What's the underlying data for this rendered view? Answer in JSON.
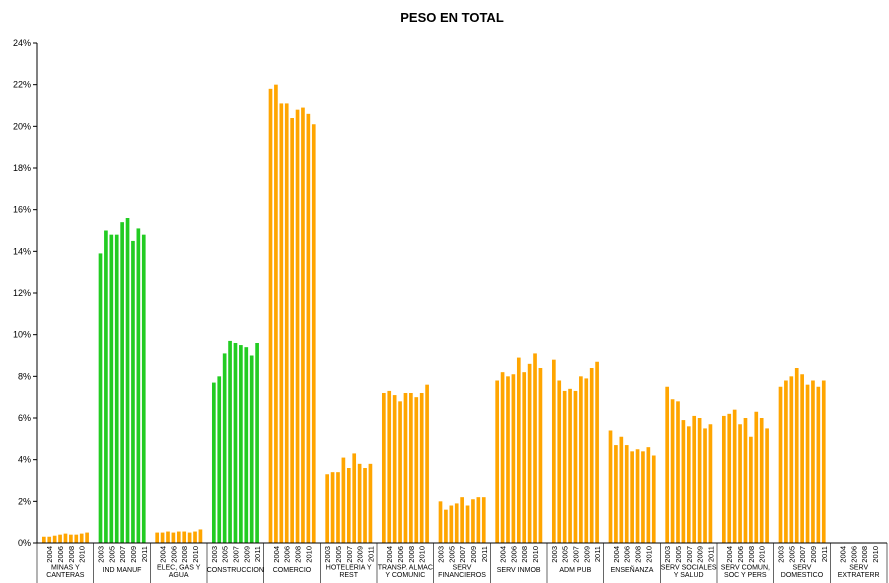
{
  "chart_data": {
    "type": "bar",
    "title": "PESO EN TOTAL",
    "ylim": [
      0,
      24
    ],
    "yticks": [
      {
        "value": 0,
        "label": "0%"
      },
      {
        "value": 2,
        "label": "2%"
      },
      {
        "value": 4,
        "label": "4%"
      },
      {
        "value": 6,
        "label": "6%"
      },
      {
        "value": 8,
        "label": "8%"
      },
      {
        "value": 10,
        "label": "10%"
      },
      {
        "value": 12,
        "label": "12%"
      },
      {
        "value": 14,
        "label": "14%"
      },
      {
        "value": 16,
        "label": "16%"
      },
      {
        "value": 18,
        "label": "18%"
      },
      {
        "value": 20,
        "label": "20%"
      },
      {
        "value": 22,
        "label": "22%"
      },
      {
        "value": 24,
        "label": "24%"
      }
    ],
    "groups": [
      {
        "label": [
          "MINAS Y",
          "CANTERAS"
        ],
        "color": "#ffa500",
        "years": [
          null,
          "2004",
          null,
          "2006",
          null,
          "2008",
          null,
          "2010",
          null
        ],
        "values": [
          0.3,
          0.3,
          0.35,
          0.4,
          0.45,
          0.4,
          0.4,
          0.45,
          0.5
        ]
      },
      {
        "label": [
          "IND MANUF"
        ],
        "color": "#22cc22",
        "years": [
          "2003",
          null,
          "2005",
          null,
          "2007",
          null,
          "2009",
          null,
          "2011"
        ],
        "values": [
          13.9,
          15.0,
          14.8,
          14.8,
          15.4,
          15.6,
          14.5,
          15.1,
          14.8
        ]
      },
      {
        "label": [
          "ELEC, GAS Y",
          "AGUA"
        ],
        "color": "#ffa500",
        "years": [
          null,
          "2004",
          null,
          "2006",
          null,
          "2008",
          null,
          "2010",
          null
        ],
        "values": [
          0.5,
          0.5,
          0.55,
          0.5,
          0.55,
          0.55,
          0.5,
          0.55,
          0.65
        ]
      },
      {
        "label": [
          "CONSTRUCCION"
        ],
        "color": "#22cc22",
        "years": [
          "2003",
          null,
          "2005",
          null,
          "2007",
          null,
          "2009",
          null,
          "2011"
        ],
        "values": [
          7.7,
          8.0,
          9.1,
          9.7,
          9.6,
          9.5,
          9.4,
          9.0,
          9.6
        ]
      },
      {
        "label": [
          "COMERCIO"
        ],
        "color": "#ffa500",
        "years": [
          null,
          "2004",
          null,
          "2006",
          null,
          "2008",
          null,
          "2010",
          null
        ],
        "values": [
          21.8,
          22.0,
          21.1,
          21.1,
          20.4,
          20.8,
          20.9,
          20.6,
          20.1
        ]
      },
      {
        "label": [
          "HOTELERIA Y",
          "REST"
        ],
        "color": "#ffa500",
        "years": [
          "2003",
          null,
          "2005",
          null,
          "2007",
          null,
          "2009",
          null,
          "2011"
        ],
        "values": [
          3.3,
          3.4,
          3.4,
          4.1,
          3.6,
          4.3,
          3.8,
          3.6,
          3.8
        ]
      },
      {
        "label": [
          "TRANSP. ALMAC",
          "Y COMUNIC"
        ],
        "color": "#ffa500",
        "years": [
          null,
          "2004",
          null,
          "2006",
          null,
          "2008",
          null,
          "2010",
          null
        ],
        "values": [
          7.2,
          7.3,
          7.1,
          6.8,
          7.2,
          7.2,
          7.0,
          7.2,
          7.6
        ]
      },
      {
        "label": [
          "SERV",
          "FINANCIEROS"
        ],
        "color": "#ffa500",
        "years": [
          "2003",
          null,
          "2005",
          null,
          "2007",
          null,
          "2009",
          null,
          "2011"
        ],
        "values": [
          2.0,
          1.6,
          1.8,
          1.9,
          2.2,
          1.8,
          2.1,
          2.2,
          2.2
        ]
      },
      {
        "label": [
          "SERV INMOB"
        ],
        "color": "#ffa500",
        "years": [
          null,
          "2004",
          null,
          "2006",
          null,
          "2008",
          null,
          "2010",
          null
        ],
        "values": [
          7.8,
          8.2,
          8.0,
          8.1,
          8.9,
          8.2,
          8.6,
          9.1,
          8.4
        ]
      },
      {
        "label": [
          "ADM PUB"
        ],
        "color": "#ffa500",
        "years": [
          "2003",
          null,
          "2005",
          null,
          "2007",
          null,
          "2009",
          null,
          "2011"
        ],
        "values": [
          8.8,
          7.8,
          7.3,
          7.4,
          7.3,
          8.0,
          7.9,
          8.4,
          8.7
        ]
      },
      {
        "label": [
          "ENSEÑANZA"
        ],
        "color": "#ffa500",
        "years": [
          null,
          "2004",
          null,
          "2006",
          null,
          "2008",
          null,
          "2010",
          null
        ],
        "values": [
          5.4,
          4.7,
          5.1,
          4.7,
          4.4,
          4.5,
          4.4,
          4.6,
          4.2
        ]
      },
      {
        "label": [
          "SERV SOCIALES",
          "Y SALUD"
        ],
        "color": "#ffa500",
        "years": [
          "2003",
          null,
          "2005",
          null,
          "2007",
          null,
          "2009",
          null,
          "2011"
        ],
        "values": [
          7.5,
          6.9,
          6.8,
          5.9,
          5.6,
          6.1,
          6.0,
          5.5,
          5.7
        ]
      },
      {
        "label": [
          "SERV COMUN,",
          "SOC Y PERS"
        ],
        "color": "#ffa500",
        "years": [
          null,
          "2004",
          null,
          "2006",
          null,
          "2008",
          null,
          "2010",
          null
        ],
        "values": [
          6.1,
          6.2,
          6.4,
          5.7,
          6.0,
          5.1,
          6.3,
          6.0,
          5.5
        ]
      },
      {
        "label": [
          "SERV",
          "DOMESTICO"
        ],
        "color": "#ffa500",
        "years": [
          "2003",
          null,
          "2005",
          null,
          "2007",
          null,
          "2009",
          null,
          "2011"
        ],
        "values": [
          7.5,
          7.8,
          8.0,
          8.4,
          8.1,
          7.6,
          7.8,
          7.5,
          7.8
        ]
      },
      {
        "label": [
          "SERV",
          "EXTRATERR"
        ],
        "color": "#ffa500",
        "years": [
          null,
          "2004",
          null,
          "2006",
          null,
          "2008",
          null,
          "2010",
          null
        ],
        "values": [
          0,
          0,
          0,
          0,
          0,
          0,
          0,
          0,
          0.02
        ]
      }
    ]
  }
}
